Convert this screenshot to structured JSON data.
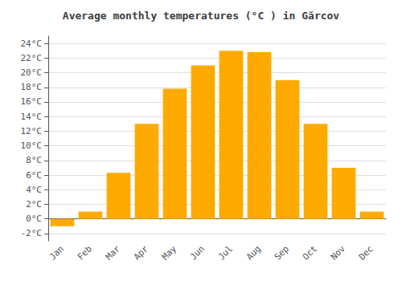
{
  "chart_data": {
    "type": "bar",
    "title": "Average monthly temperatures (°C ) in Gărcov",
    "categories": [
      "Jan",
      "Feb",
      "Mar",
      "Apr",
      "May",
      "Jun",
      "Jul",
      "Aug",
      "Sep",
      "Oct",
      "Nov",
      "Dec"
    ],
    "values": [
      -1.0,
      1.0,
      6.3,
      13.0,
      17.8,
      21.0,
      23.0,
      22.8,
      19.0,
      13.0,
      7.0,
      1.0
    ],
    "color": "#FFAA00",
    "ylim": [
      -3,
      25
    ],
    "yticks": [
      {
        "value": -2,
        "label": "-2°C"
      },
      {
        "value": 0,
        "label": "0°C"
      },
      {
        "value": 2,
        "label": "2°C"
      },
      {
        "value": 4,
        "label": "4°C"
      },
      {
        "value": 6,
        "label": "6°C"
      },
      {
        "value": 8,
        "label": "8°C"
      },
      {
        "value": 10,
        "label": "10°C"
      },
      {
        "value": 12,
        "label": "12°C"
      },
      {
        "value": 14,
        "label": "14°C"
      },
      {
        "value": 16,
        "label": "16°C"
      },
      {
        "value": 18,
        "label": "18°C"
      },
      {
        "value": 20,
        "label": "20°C"
      },
      {
        "value": 22,
        "label": "22°C"
      },
      {
        "value": 24,
        "label": "24°C"
      }
    ],
    "grid": true
  }
}
